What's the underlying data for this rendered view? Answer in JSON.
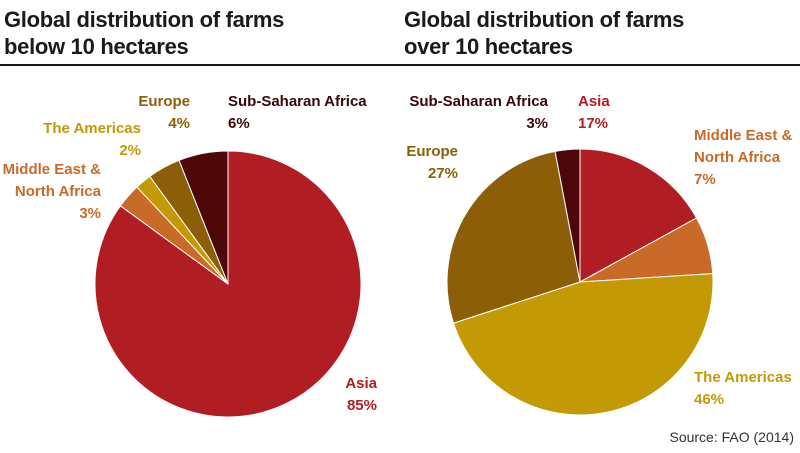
{
  "chart_data": [
    {
      "type": "pie",
      "title": [
        "Global distribution of farms",
        "below 10 hectares"
      ],
      "slices": [
        {
          "label": [
            "Asia"
          ],
          "value": 85,
          "value_label": "85%",
          "color": "#b01e23"
        },
        {
          "label": [
            "Middle East &",
            "North Africa"
          ],
          "value": 3,
          "value_label": "3%",
          "color": "#c96a28"
        },
        {
          "label": [
            "The Americas"
          ],
          "value": 2,
          "value_label": "2%",
          "color": "#c39a05"
        },
        {
          "label": [
            "Europe"
          ],
          "value": 4,
          "value_label": "4%",
          "color": "#8c5e07"
        },
        {
          "label": [
            "Sub-Saharan Africa"
          ],
          "value": 6,
          "value_label": "6%",
          "color": "#4d0709"
        }
      ]
    },
    {
      "type": "pie",
      "title": [
        "Global distribution of farms",
        "over 10 hectares"
      ],
      "slices": [
        {
          "label": [
            "Asia"
          ],
          "value": 17,
          "value_label": "17%",
          "color": "#b01e23"
        },
        {
          "label": [
            "Middle East &",
            "North Africa"
          ],
          "value": 7,
          "value_label": "7%",
          "color": "#c96a28"
        },
        {
          "label": [
            "The Americas"
          ],
          "value": 46,
          "value_label": "46%",
          "color": "#c39a05"
        },
        {
          "label": [
            "Europe"
          ],
          "value": 27,
          "value_label": "27%",
          "color": "#8c5e07"
        },
        {
          "label": [
            "Sub-Saharan Africa"
          ],
          "value": 3,
          "value_label": "3%",
          "color": "#4d0709"
        }
      ]
    }
  ],
  "source": "Source: FAO (2014)"
}
